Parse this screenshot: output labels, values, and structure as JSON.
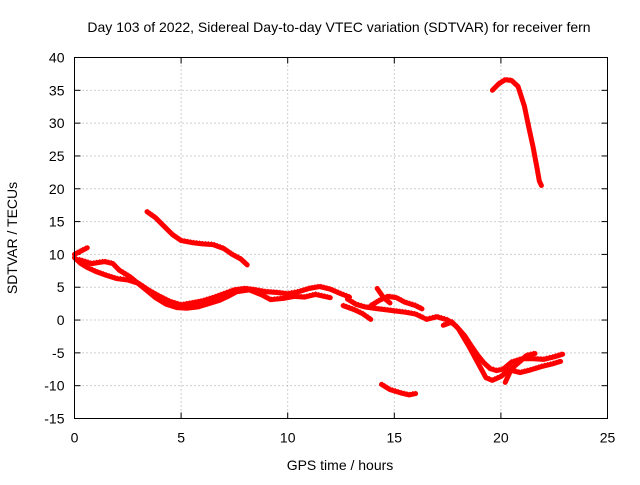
{
  "chart_data": {
    "type": "line",
    "title": "Day 103 of 2022, Sidereal Day-to-day VTEC variation (SDTVAR) for receiver fern",
    "xlabel": "GPS time / hours",
    "ylabel": "SDTVAR / TECUs",
    "xlim": [
      0,
      25
    ],
    "ylim": [
      -15,
      40
    ],
    "xticks": [
      0,
      5,
      10,
      15,
      20,
      25
    ],
    "yticks": [
      -15,
      -10,
      -5,
      0,
      5,
      10,
      15,
      20,
      25,
      30,
      35,
      40
    ],
    "grid": true,
    "series_color": "#ff0000",
    "series": [
      {
        "name": "track-main-a",
        "points": [
          [
            0.0,
            9.5
          ],
          [
            0.3,
            8.6
          ],
          [
            0.6,
            8.0
          ],
          [
            1.0,
            7.4
          ],
          [
            1.5,
            6.8
          ],
          [
            2.0,
            6.3
          ],
          [
            2.5,
            6.1
          ],
          [
            3.0,
            5.6
          ],
          [
            3.5,
            4.5
          ],
          [
            4.0,
            3.6
          ],
          [
            4.5,
            2.8
          ],
          [
            5.0,
            2.3
          ],
          [
            5.5,
            2.6
          ],
          [
            6.0,
            2.9
          ],
          [
            6.5,
            3.4
          ],
          [
            7.0,
            4.0
          ],
          [
            7.5,
            4.6
          ],
          [
            8.0,
            4.8
          ],
          [
            8.5,
            4.6
          ],
          [
            9.0,
            4.3
          ],
          [
            9.5,
            4.2
          ],
          [
            10.0,
            4.0
          ],
          [
            10.5,
            4.3
          ],
          [
            11.0,
            4.8
          ],
          [
            11.5,
            5.1
          ],
          [
            12.0,
            4.7
          ],
          [
            12.5,
            4.0
          ],
          [
            12.9,
            3.5
          ]
        ]
      },
      {
        "name": "track-main-b",
        "points": [
          [
            0.2,
            9.2
          ],
          [
            0.8,
            8.6
          ],
          [
            1.4,
            8.9
          ],
          [
            1.8,
            8.6
          ],
          [
            2.1,
            7.6
          ],
          [
            2.6,
            6.6
          ],
          [
            3.2,
            5.0
          ],
          [
            3.8,
            3.4
          ],
          [
            4.3,
            2.4
          ],
          [
            4.8,
            1.9
          ],
          [
            5.3,
            1.8
          ],
          [
            5.8,
            2.0
          ],
          [
            6.3,
            2.5
          ],
          [
            6.8,
            3.0
          ],
          [
            7.2,
            3.6
          ],
          [
            7.6,
            4.3
          ],
          [
            8.2,
            4.6
          ],
          [
            8.8,
            3.8
          ],
          [
            9.2,
            3.1
          ],
          [
            9.8,
            3.3
          ],
          [
            10.3,
            3.6
          ],
          [
            10.8,
            3.5
          ],
          [
            11.3,
            3.9
          ],
          [
            12.0,
            3.4
          ]
        ]
      },
      {
        "name": "track-early-spike",
        "points": [
          [
            0.0,
            10.0
          ],
          [
            0.3,
            10.5
          ],
          [
            0.6,
            11.0
          ]
        ]
      },
      {
        "name": "track-upper",
        "points": [
          [
            3.4,
            16.5
          ],
          [
            3.8,
            15.6
          ],
          [
            4.2,
            14.3
          ],
          [
            4.6,
            13.0
          ],
          [
            5.0,
            12.1
          ],
          [
            5.5,
            11.8
          ],
          [
            6.0,
            11.6
          ],
          [
            6.5,
            11.5
          ],
          [
            7.0,
            10.9
          ],
          [
            7.4,
            10.0
          ],
          [
            7.8,
            9.3
          ],
          [
            8.1,
            8.4
          ]
        ]
      },
      {
        "name": "track-middle",
        "points": [
          [
            12.8,
            3.2
          ],
          [
            13.2,
            2.4
          ],
          [
            13.6,
            2.0
          ],
          [
            14.0,
            1.8
          ],
          [
            14.5,
            1.6
          ],
          [
            15.0,
            1.4
          ],
          [
            15.5,
            1.2
          ],
          [
            16.0,
            0.9
          ],
          [
            16.4,
            0.3
          ]
        ]
      },
      {
        "name": "track-middle-b",
        "points": [
          [
            12.6,
            2.2
          ],
          [
            13.1,
            1.6
          ],
          [
            13.5,
            1.0
          ],
          [
            13.9,
            0.1
          ]
        ]
      },
      {
        "name": "track-bump",
        "points": [
          [
            13.9,
            2.2
          ],
          [
            14.3,
            3.0
          ],
          [
            14.7,
            3.6
          ],
          [
            15.1,
            3.4
          ],
          [
            15.5,
            2.7
          ],
          [
            16.0,
            2.2
          ],
          [
            16.3,
            1.7
          ]
        ]
      },
      {
        "name": "track-spike-b",
        "points": [
          [
            14.2,
            4.8
          ],
          [
            14.5,
            3.4
          ],
          [
            14.8,
            2.6
          ]
        ]
      },
      {
        "name": "track-lower-small",
        "points": [
          [
            14.4,
            -9.8
          ],
          [
            14.8,
            -10.6
          ],
          [
            15.3,
            -11.1
          ],
          [
            15.7,
            -11.4
          ],
          [
            16.0,
            -11.2
          ]
        ]
      },
      {
        "name": "track-descent",
        "points": [
          [
            16.5,
            0.1
          ],
          [
            17.0,
            0.5
          ],
          [
            17.5,
            0.0
          ],
          [
            17.9,
            -0.9
          ],
          [
            18.3,
            -2.4
          ],
          [
            18.6,
            -3.9
          ],
          [
            18.9,
            -5.3
          ],
          [
            19.2,
            -6.5
          ],
          [
            19.5,
            -7.4
          ],
          [
            19.8,
            -7.7
          ],
          [
            20.1,
            -7.5
          ],
          [
            20.5,
            -6.4
          ],
          [
            21.0,
            -5.9
          ],
          [
            21.5,
            -5.9
          ],
          [
            22.0,
            -6.0
          ],
          [
            22.5,
            -5.6
          ],
          [
            22.9,
            -5.2
          ]
        ]
      },
      {
        "name": "track-descent-b",
        "points": [
          [
            17.3,
            -0.8
          ],
          [
            17.7,
            -0.3
          ],
          [
            18.0,
            -1.3
          ],
          [
            18.5,
            -4.0
          ],
          [
            19.0,
            -7.0
          ],
          [
            19.3,
            -8.8
          ],
          [
            19.6,
            -9.2
          ],
          [
            20.0,
            -8.6
          ],
          [
            20.4,
            -7.6
          ],
          [
            20.9,
            -8.0
          ],
          [
            21.4,
            -7.6
          ],
          [
            21.9,
            -7.1
          ],
          [
            22.4,
            -6.7
          ],
          [
            22.8,
            -6.3
          ]
        ]
      },
      {
        "name": "track-descent-c",
        "points": [
          [
            20.2,
            -9.5
          ],
          [
            20.5,
            -7.4
          ],
          [
            20.9,
            -6.3
          ],
          [
            21.2,
            -5.4
          ],
          [
            21.6,
            -5.1
          ]
        ]
      },
      {
        "name": "track-top-right",
        "points": [
          [
            19.6,
            35.0
          ],
          [
            19.9,
            36.0
          ],
          [
            20.2,
            36.6
          ],
          [
            20.5,
            36.5
          ],
          [
            20.8,
            35.6
          ],
          [
            21.1,
            32.6
          ],
          [
            21.3,
            29.5
          ],
          [
            21.5,
            26.5
          ],
          [
            21.7,
            23.1
          ],
          [
            21.8,
            21.2
          ],
          [
            21.9,
            20.5
          ]
        ]
      }
    ]
  }
}
